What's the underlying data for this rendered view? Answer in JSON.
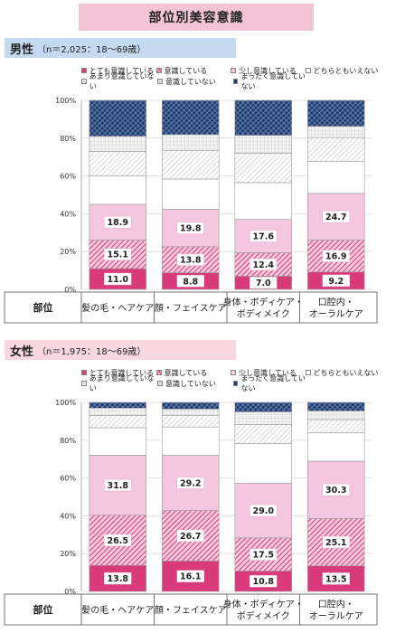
{
  "title": "部位別美容意識",
  "legend": [
    {
      "label": "とても意識している",
      "color": "#d83a7a",
      "pattern": "solid"
    },
    {
      "label": "意識している",
      "color": "#e05a8f",
      "pattern": "hatch"
    },
    {
      "label": "少し意識している",
      "color": "#f5c6df",
      "pattern": "solid"
    },
    {
      "label": "どちらともいえない",
      "color": "#ffffff",
      "pattern": "solid"
    },
    {
      "label": "あまり意識していない",
      "color": "#c8c8c8",
      "pattern": "hatch"
    },
    {
      "label": "意識していない",
      "color": "#bdbdbd",
      "pattern": "grid"
    },
    {
      "label": "まったく意識していない",
      "color": "#1f3b6e",
      "pattern": "cross"
    }
  ],
  "panels": [
    {
      "gender": "男性",
      "sample": "（n＝2,025：18〜69歳）",
      "row_header": "部位",
      "ytick_labels": [
        "0%",
        "20%",
        "40%",
        "60%",
        "80%",
        "100%"
      ]
    },
    {
      "gender": "女性",
      "sample": "（n＝1,975：18〜69歳）",
      "row_header": "部位",
      "ytick_labels": [
        "0%",
        "20%",
        "40%",
        "60%",
        "80%",
        "100%"
      ]
    }
  ],
  "chart_data": [
    {
      "type": "bar",
      "stacked": true,
      "title": "男性",
      "categories": [
        "髪の毛・ヘアケア",
        "顔・フェイスケア",
        "身体・ボディケア・ボディメイク",
        "口腔内・オーラルケア"
      ],
      "category_lines": [
        [
          "髪の毛・ヘアケア"
        ],
        [
          "顔・フェイスケア"
        ],
        [
          "身体・ボディケア・",
          "ボディメイク"
        ],
        [
          "口腔内・",
          "オーラルケア"
        ]
      ],
      "series": [
        {
          "name": "とても意識している",
          "values": [
            11.0,
            8.8,
            7.0,
            9.2
          ],
          "labeled": true
        },
        {
          "name": "意識している",
          "values": [
            15.1,
            13.8,
            12.4,
            16.9
          ],
          "labeled": true
        },
        {
          "name": "少し意識している",
          "values": [
            18.9,
            19.8,
            17.6,
            24.7
          ],
          "labeled": true
        },
        {
          "name": "どちらともいえない",
          "values": [
            15.0,
            16.0,
            19.5,
            17.0
          ]
        },
        {
          "name": "あまり意識していない",
          "values": [
            13.0,
            15.0,
            15.5,
            12.5
          ]
        },
        {
          "name": "意識していない",
          "values": [
            8.0,
            8.5,
            9.5,
            6.0
          ]
        },
        {
          "name": "まったく意識していない",
          "values": [
            19.0,
            18.1,
            18.5,
            13.7
          ]
        }
      ],
      "ylim": [
        0,
        100
      ]
    },
    {
      "type": "bar",
      "stacked": true,
      "title": "女性",
      "categories": [
        "髪の毛・ヘアケア",
        "顔・フェイスケア",
        "身体・ボディケア・ボディメイク",
        "口腔内・オーラルケア"
      ],
      "category_lines": [
        [
          "髪の毛・ヘアケア"
        ],
        [
          "顔・フェイスケア"
        ],
        [
          "身体・ボディケア・",
          "ボディメイク"
        ],
        [
          "口腔内・",
          "オーラルケア"
        ]
      ],
      "series": [
        {
          "name": "とても意識している",
          "values": [
            13.8,
            16.1,
            10.8,
            13.5
          ],
          "labeled": true
        },
        {
          "name": "意識している",
          "values": [
            26.5,
            26.7,
            17.5,
            25.1
          ],
          "labeled": true
        },
        {
          "name": "少し意識している",
          "values": [
            31.8,
            29.2,
            29.0,
            30.3
          ],
          "labeled": true
        },
        {
          "name": "どちらともいえない",
          "values": [
            14.5,
            15.0,
            21.0,
            15.0
          ]
        },
        {
          "name": "あまり意識していない",
          "values": [
            6.5,
            6.0,
            10.0,
            7.0
          ]
        },
        {
          "name": "意識していない",
          "values": [
            3.9,
            3.5,
            6.7,
            4.6
          ]
        },
        {
          "name": "まったく意識していない",
          "values": [
            3.0,
            3.5,
            5.0,
            4.5
          ]
        }
      ],
      "ylim": [
        0,
        100
      ]
    }
  ]
}
